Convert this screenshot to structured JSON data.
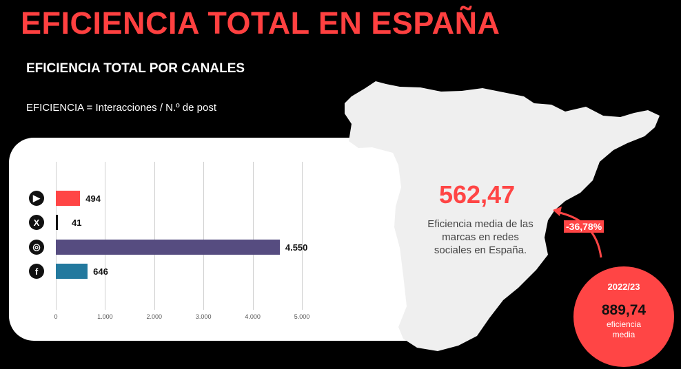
{
  "title": "EFICIENCIA TOTAL EN ESPAÑA",
  "subtitle": "EFICIENCIA TOTAL POR CANALES",
  "formula": "EFICIENCIA = Interacciones / N.º de post",
  "colors": {
    "accent": "#ff4545",
    "map": "#efefef"
  },
  "chart_data": {
    "type": "bar",
    "orientation": "horizontal",
    "categories": [
      "YouTube",
      "X",
      "Instagram",
      "Facebook"
    ],
    "icons": [
      "youtube-icon",
      "x-icon",
      "instagram-icon",
      "facebook-icon"
    ],
    "values": [
      494,
      41,
      4550,
      646
    ],
    "labels": [
      "494",
      "41",
      "4.550",
      "646"
    ],
    "colors": [
      "#ff4545",
      "#111111",
      "#564c80",
      "#23799e"
    ],
    "xlim": [
      0,
      5000
    ],
    "ticks": [
      0,
      1000,
      2000,
      3000,
      4000,
      5000
    ],
    "tick_labels": [
      "0",
      "1.000",
      "2.000",
      "3.000",
      "4.000",
      "5.000"
    ],
    "grid": true
  },
  "summary": {
    "value": "562,47",
    "description": "Eficiencia media de las marcas en redes sociales en España.",
    "change": "-36,78%",
    "previous_year": "2022/23",
    "previous_value": "889,74",
    "previous_label": "eficiencia media"
  }
}
